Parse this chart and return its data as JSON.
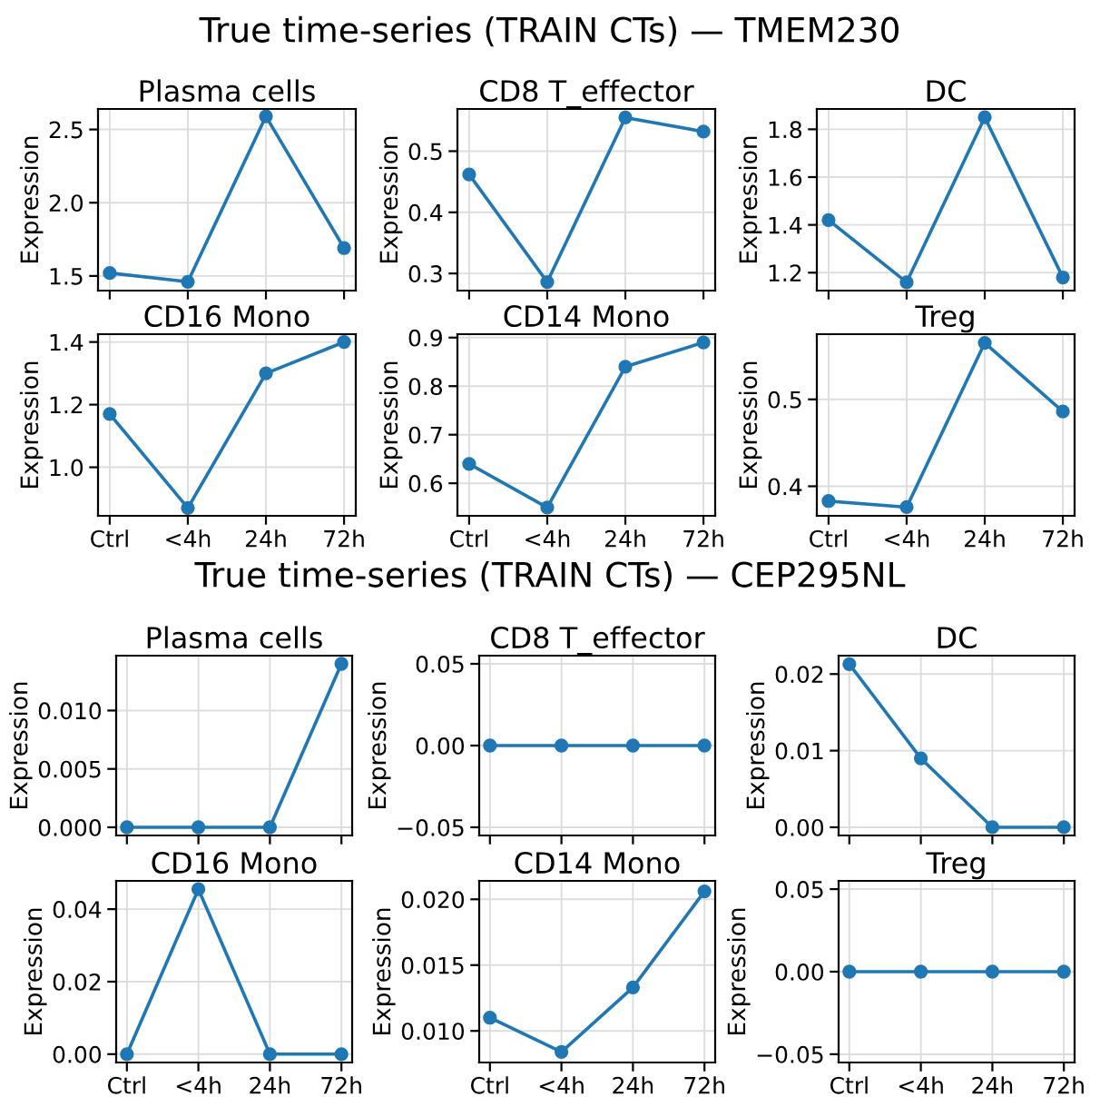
{
  "chart_data": [
    {
      "type": "line",
      "annotations": [
        "True time-series (TRAIN CTs) — TMEM230"
      ],
      "title": "Plasma cells",
      "ylabel": "Expression",
      "categories": [
        "Ctrl",
        "<4h",
        "24h",
        "72h"
      ],
      "series": [
        {
          "color": "#1f77b4",
          "values": [
            1.52,
            1.46,
            2.59,
            1.69
          ]
        }
      ],
      "ylim": [
        1.4,
        2.64
      ],
      "yticks": [
        {
          "value": 1.5,
          "label": "1.5"
        },
        {
          "value": 2.0,
          "label": "2.0"
        },
        {
          "value": 2.5,
          "label": "2.5"
        }
      ],
      "tick_labels": "y",
      "grid": true,
      "marker": "circle",
      "line_style": "solid"
    },
    {
      "type": "line",
      "title": "CD8 T_effector",
      "ylabel": "Expression",
      "categories": [
        "Ctrl",
        "<4h",
        "24h",
        "72h"
      ],
      "series": [
        {
          "color": "#1f77b4",
          "values": [
            0.462,
            0.286,
            0.555,
            0.532
          ]
        }
      ],
      "ylim": [
        0.272,
        0.569
      ],
      "yticks": [
        {
          "value": 0.3,
          "label": "0.3"
        },
        {
          "value": 0.4,
          "label": "0.4"
        },
        {
          "value": 0.5,
          "label": "0.5"
        }
      ],
      "tick_labels": "y",
      "grid": true,
      "marker": "circle",
      "line_style": "solid"
    },
    {
      "type": "line",
      "title": "DC",
      "ylabel": "Expression",
      "categories": [
        "Ctrl",
        "<4h",
        "24h",
        "72h"
      ],
      "series": [
        {
          "color": "#1f77b4",
          "values": [
            1.42,
            1.16,
            1.85,
            1.18
          ]
        }
      ],
      "ylim": [
        1.125,
        1.885
      ],
      "yticks": [
        {
          "value": 1.2,
          "label": "1.2"
        },
        {
          "value": 1.4,
          "label": "1.4"
        },
        {
          "value": 1.6,
          "label": "1.6"
        },
        {
          "value": 1.8,
          "label": "1.8"
        }
      ],
      "tick_labels": "y",
      "grid": true,
      "marker": "circle",
      "line_style": "solid"
    },
    {
      "type": "line",
      "title": "CD16 Mono",
      "ylabel": "Expression",
      "categories": [
        "Ctrl",
        "<4h",
        "24h",
        "72h"
      ],
      "series": [
        {
          "color": "#1f77b4",
          "values": [
            1.17,
            0.87,
            1.3,
            1.4
          ]
        }
      ],
      "ylim": [
        0.845,
        1.425
      ],
      "yticks": [
        {
          "value": 1.0,
          "label": "1.0"
        },
        {
          "value": 1.2,
          "label": "1.2"
        },
        {
          "value": 1.4,
          "label": "1.4"
        }
      ],
      "grid": true,
      "marker": "circle",
      "line_style": "solid"
    },
    {
      "type": "line",
      "title": "CD14 Mono",
      "ylabel": "Expression",
      "categories": [
        "Ctrl",
        "<4h",
        "24h",
        "72h"
      ],
      "series": [
        {
          "color": "#1f77b4",
          "values": [
            0.64,
            0.55,
            0.84,
            0.89
          ]
        }
      ],
      "ylim": [
        0.533,
        0.907
      ],
      "yticks": [
        {
          "value": 0.6,
          "label": "0.6"
        },
        {
          "value": 0.7,
          "label": "0.7"
        },
        {
          "value": 0.8,
          "label": "0.8"
        },
        {
          "value": 0.9,
          "label": "0.9"
        }
      ],
      "grid": true,
      "marker": "circle",
      "line_style": "solid"
    },
    {
      "type": "line",
      "title": "Treg",
      "ylabel": "Expression",
      "categories": [
        "Ctrl",
        "<4h",
        "24h",
        "72h"
      ],
      "series": [
        {
          "color": "#1f77b4",
          "values": [
            0.383,
            0.376,
            0.565,
            0.486
          ]
        }
      ],
      "ylim": [
        0.366,
        0.575
      ],
      "yticks": [
        {
          "value": 0.4,
          "label": "0.4"
        },
        {
          "value": 0.5,
          "label": "0.5"
        }
      ],
      "grid": true,
      "marker": "circle",
      "line_style": "solid"
    },
    {
      "type": "line",
      "annotations": [
        "True time-series (TRAIN CTs) — CEP295NL"
      ],
      "title": "Plasma cells",
      "ylabel": "Expression",
      "categories": [
        "Ctrl",
        "<4h",
        "24h",
        "72h"
      ],
      "series": [
        {
          "color": "#1f77b4",
          "values": [
            0,
            0,
            0,
            0.014
          ]
        }
      ],
      "ylim": [
        -0.0007,
        0.0147
      ],
      "yticks": [
        {
          "value": 0,
          "label": "0.000"
        },
        {
          "value": 0.005,
          "label": "0.005"
        },
        {
          "value": 0.01,
          "label": "0.010"
        }
      ],
      "tick_labels": "y",
      "grid": true,
      "marker": "circle",
      "line_style": "solid"
    },
    {
      "type": "line",
      "title": "CD8 T_effector",
      "ylabel": "Expression",
      "categories": [
        "Ctrl",
        "<4h",
        "24h",
        "72h"
      ],
      "series": [
        {
          "color": "#1f77b4",
          "values": [
            0,
            0,
            0,
            0
          ]
        }
      ],
      "ylim": [
        -0.055,
        0.055
      ],
      "yticks": [
        {
          "value": -0.05,
          "label": "−0.05"
        },
        {
          "value": 0,
          "label": "0.00"
        },
        {
          "value": 0.05,
          "label": "0.05"
        }
      ],
      "tick_labels": "y",
      "grid": true,
      "marker": "circle",
      "line_style": "solid"
    },
    {
      "type": "line",
      "title": "DC",
      "ylabel": "Expression",
      "categories": [
        "Ctrl",
        "<4h",
        "24h",
        "72h"
      ],
      "series": [
        {
          "color": "#1f77b4",
          "values": [
            0.0213,
            0.009,
            0,
            0
          ]
        }
      ],
      "ylim": [
        -0.00107,
        0.0224
      ],
      "yticks": [
        {
          "value": 0,
          "label": "0.00"
        },
        {
          "value": 0.01,
          "label": "0.01"
        },
        {
          "value": 0.02,
          "label": "0.02"
        }
      ],
      "tick_labels": "y",
      "grid": true,
      "marker": "circle",
      "line_style": "solid"
    },
    {
      "type": "line",
      "title": "CD16 Mono",
      "ylabel": "Expression",
      "categories": [
        "Ctrl",
        "<4h",
        "24h",
        "72h"
      ],
      "series": [
        {
          "color": "#1f77b4",
          "values": [
            0,
            0.0455,
            0,
            0
          ]
        }
      ],
      "ylim": [
        -0.0023,
        0.0478
      ],
      "yticks": [
        {
          "value": 0,
          "label": "0.00"
        },
        {
          "value": 0.02,
          "label": "0.02"
        },
        {
          "value": 0.04,
          "label": "0.04"
        }
      ],
      "grid": true,
      "marker": "circle",
      "line_style": "solid"
    },
    {
      "type": "line",
      "title": "CD14 Mono",
      "ylabel": "Expression",
      "categories": [
        "Ctrl",
        "<4h",
        "24h",
        "72h"
      ],
      "series": [
        {
          "color": "#1f77b4",
          "values": [
            0.011,
            0.0084,
            0.0133,
            0.0206
          ]
        }
      ],
      "ylim": [
        0.0076,
        0.0214
      ],
      "yticks": [
        {
          "value": 0.01,
          "label": "0.010"
        },
        {
          "value": 0.015,
          "label": "0.015"
        },
        {
          "value": 0.02,
          "label": "0.020"
        }
      ],
      "grid": true,
      "marker": "circle",
      "line_style": "solid"
    },
    {
      "type": "line",
      "title": "Treg",
      "ylabel": "Expression",
      "categories": [
        "Ctrl",
        "<4h",
        "24h",
        "72h"
      ],
      "series": [
        {
          "color": "#1f77b4",
          "values": [
            0,
            0,
            0,
            0
          ]
        }
      ],
      "ylim": [
        -0.055,
        0.055
      ],
      "yticks": [
        {
          "value": -0.05,
          "label": "−0.05"
        },
        {
          "value": 0,
          "label": "0.00"
        },
        {
          "value": 0.05,
          "label": "0.05"
        }
      ],
      "grid": true,
      "marker": "circle",
      "line_style": "solid"
    }
  ]
}
